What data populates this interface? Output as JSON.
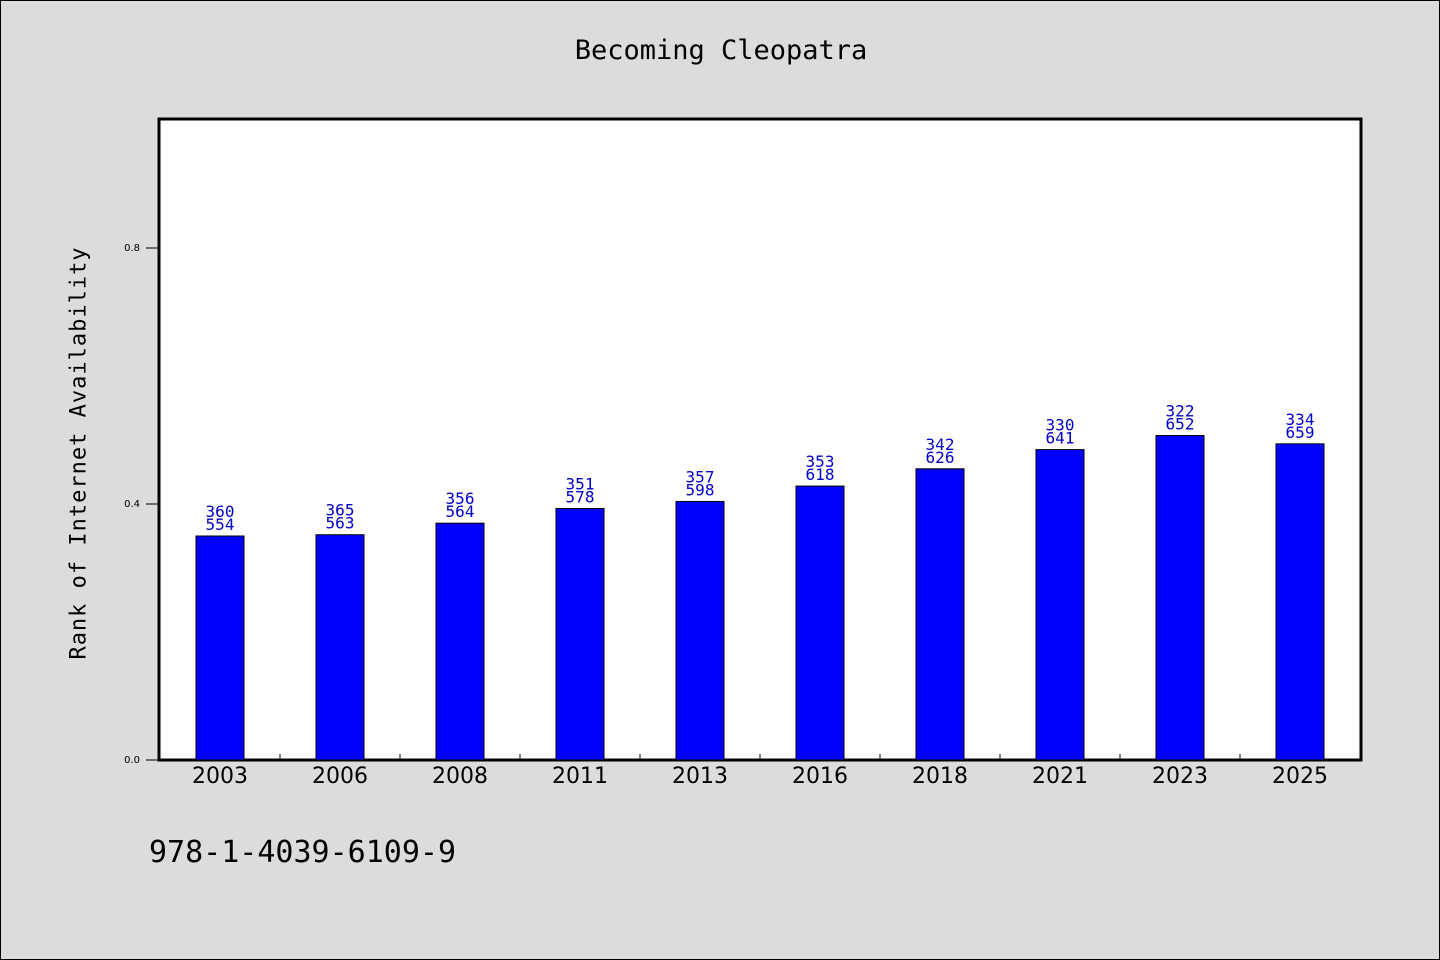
{
  "chart_data": {
    "type": "bar",
    "title": "Becoming Cleopatra",
    "xlabel": "",
    "ylabel": "Rank of Internet Availability",
    "footer": "978-1-4039-6109-9",
    "categories": [
      "2003",
      "2006",
      "2008",
      "2011",
      "2013",
      "2016",
      "2018",
      "2021",
      "2023",
      "2025"
    ],
    "values": [
      0.35,
      0.352,
      0.37,
      0.393,
      0.404,
      0.428,
      0.455,
      0.485,
      0.507,
      0.494
    ],
    "bar_labels_top": [
      "360",
      "365",
      "356",
      "351",
      "357",
      "353",
      "342",
      "330",
      "322",
      "334"
    ],
    "bar_labels_bottom": [
      "554",
      "563",
      "564",
      "578",
      "598",
      "618",
      "626",
      "641",
      "652",
      "659"
    ],
    "yticks": [
      "0.0",
      "0.4",
      "0.8"
    ],
    "ylim": [
      0,
      1.0
    ],
    "grid": false,
    "colors": {
      "bar": "#0000ff",
      "bar_label": "#0000cc",
      "plot_bg": "#ffffff",
      "page_bg": "#dcdcdc"
    }
  }
}
